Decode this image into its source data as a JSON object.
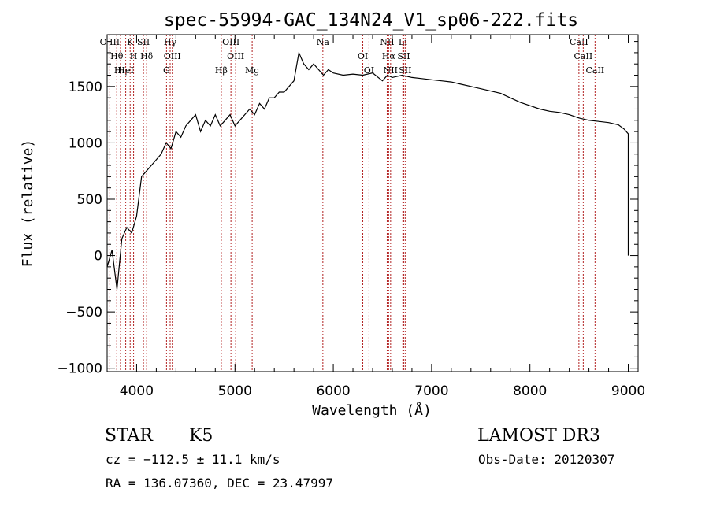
{
  "chart_data": {
    "type": "line",
    "title": "spec-55994-GAC_134N24_V1_sp06-222.fits",
    "xlabel": "Wavelength (Å)",
    "ylabel": "Flux (relative)",
    "xlim": [
      3700,
      9100
    ],
    "ylim": [
      -1030,
      1960
    ],
    "xticks": [
      4000,
      5000,
      6000,
      7000,
      8000,
      9000
    ],
    "yticks": [
      -1000,
      -500,
      0,
      500,
      1000,
      1500
    ],
    "grid": false,
    "series": [
      {
        "name": "spectrum",
        "x": [
          3700,
          3750,
          3800,
          3850,
          3900,
          3950,
          4000,
          4050,
          4100,
          4150,
          4200,
          4250,
          4300,
          4350,
          4400,
          4450,
          4500,
          4550,
          4600,
          4650,
          4700,
          4750,
          4800,
          4850,
          4900,
          4950,
          5000,
          5050,
          5100,
          5150,
          5200,
          5250,
          5300,
          5350,
          5400,
          5450,
          5500,
          5550,
          5600,
          5650,
          5700,
          5750,
          5800,
          5850,
          5900,
          5950,
          6000,
          6100,
          6200,
          6300,
          6400,
          6500,
          6550,
          6600,
          6700,
          6800,
          6900,
          7000,
          7100,
          7200,
          7300,
          7400,
          7500,
          7600,
          7700,
          7800,
          7900,
          8000,
          8100,
          8200,
          8300,
          8400,
          8500,
          8600,
          8700,
          8800,
          8900,
          8960,
          9000,
          9000,
          9000
        ],
        "y": [
          -100,
          50,
          -300,
          150,
          250,
          200,
          350,
          700,
          750,
          800,
          850,
          900,
          1000,
          950,
          1100,
          1050,
          1150,
          1200,
          1250,
          1100,
          1200,
          1150,
          1250,
          1150,
          1200,
          1250,
          1150,
          1200,
          1250,
          1300,
          1250,
          1350,
          1300,
          1400,
          1400,
          1450,
          1450,
          1500,
          1550,
          1800,
          1700,
          1650,
          1700,
          1650,
          1600,
          1650,
          1620,
          1600,
          1610,
          1600,
          1620,
          1550,
          1600,
          1580,
          1600,
          1580,
          1570,
          1560,
          1550,
          1540,
          1520,
          1500,
          1480,
          1460,
          1440,
          1400,
          1360,
          1330,
          1300,
          1280,
          1270,
          1250,
          1220,
          1200,
          1190,
          1180,
          1160,
          1120,
          1080,
          500,
          0
        ]
      }
    ],
    "annotations": {
      "star_type": "STAR",
      "subclass": "K5",
      "survey": "LAMOST DR3",
      "cz": "cz = −112.5 ± 11.1 km/s",
      "obs_date": "Obs-Date: 20120307",
      "coords": "RA = 136.07360, DEC =  23.47997"
    },
    "lines": [
      {
        "name": "O III",
        "wavelength": 3727
      },
      {
        "name": "Hθ",
        "wavelength": 3798
      },
      {
        "name": "Hη",
        "wavelength": 3836
      },
      {
        "name": "K",
        "wavelength": 3934
      },
      {
        "name": "H",
        "wavelength": 3969
      },
      {
        "name": "HeI",
        "wavelength": 3889
      },
      {
        "name": "SII",
        "wavelength": 4069
      },
      {
        "name": "Hδ",
        "wavelength": 4102
      },
      {
        "name": "G",
        "wavelength": 4304
      },
      {
        "name": "Hγ",
        "wavelength": 4341
      },
      {
        "name": "OIII",
        "wavelength": 4363
      },
      {
        "name": "Hβ",
        "wavelength": 4861
      },
      {
        "name": "OIII",
        "wavelength": 4959
      },
      {
        "name": "OIII",
        "wavelength": 5007
      },
      {
        "name": "Mg",
        "wavelength": 5175
      },
      {
        "name": "Na",
        "wavelength": 5894
      },
      {
        "name": "OI",
        "wavelength": 6300
      },
      {
        "name": "OI",
        "wavelength": 6363
      },
      {
        "name": "NII",
        "wavelength": 6548
      },
      {
        "name": "Hα",
        "wavelength": 6563
      },
      {
        "name": "NII",
        "wavelength": 6583
      },
      {
        "name": "Li",
        "wavelength": 6707
      },
      {
        "name": "SII",
        "wavelength": 6716
      },
      {
        "name": "SII",
        "wavelength": 6731
      },
      {
        "name": "CaII",
        "wavelength": 8498
      },
      {
        "name": "CaII",
        "wavelength": 8542
      },
      {
        "name": "CaII",
        "wavelength": 8662
      }
    ]
  }
}
